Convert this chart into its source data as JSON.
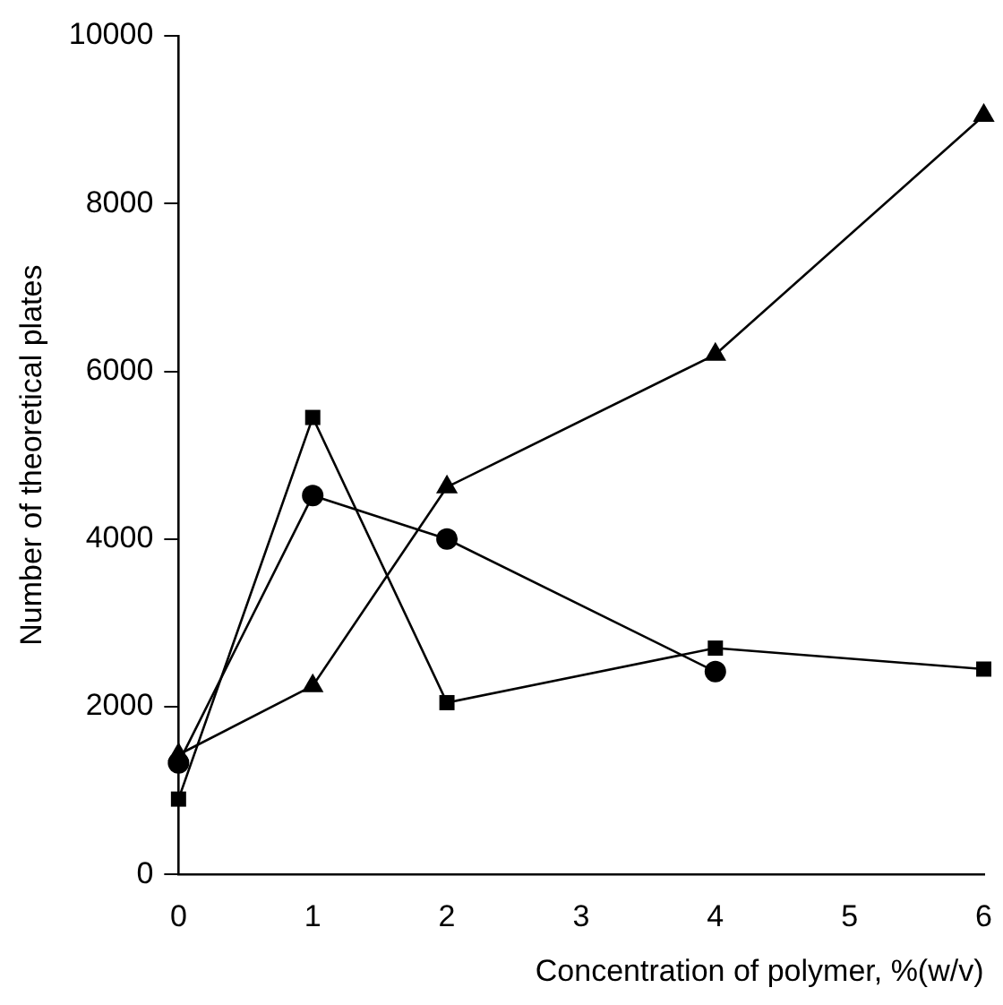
{
  "chart_data": {
    "type": "line",
    "xlabel": "Concentration of polymer, %(w/v)",
    "ylabel": "Number of theoretical plates",
    "xlim": [
      0,
      6
    ],
    "xticks": [
      0,
      1,
      2,
      3,
      4,
      5,
      6
    ],
    "ylim": [
      0,
      10000
    ],
    "yticks": [
      0,
      2000,
      4000,
      6000,
      8000,
      10000
    ],
    "grid": false,
    "legend": false,
    "line_style": "solid",
    "series": [
      {
        "color": "#000000",
        "marker": "square",
        "x": [
          0,
          1,
          2,
          4,
          6
        ],
        "values": [
          900,
          5450,
          2050,
          2700,
          2450
        ]
      },
      {
        "color": "#000000",
        "marker": "circle",
        "x": [
          0,
          1,
          2,
          4
        ],
        "values": [
          1330,
          4520,
          4000,
          2420
        ]
      },
      {
        "color": "#000000",
        "marker": "triangle",
        "x": [
          0,
          1,
          2,
          4,
          6
        ],
        "values": [
          1430,
          2250,
          4620,
          6200,
          9050
        ]
      }
    ]
  }
}
